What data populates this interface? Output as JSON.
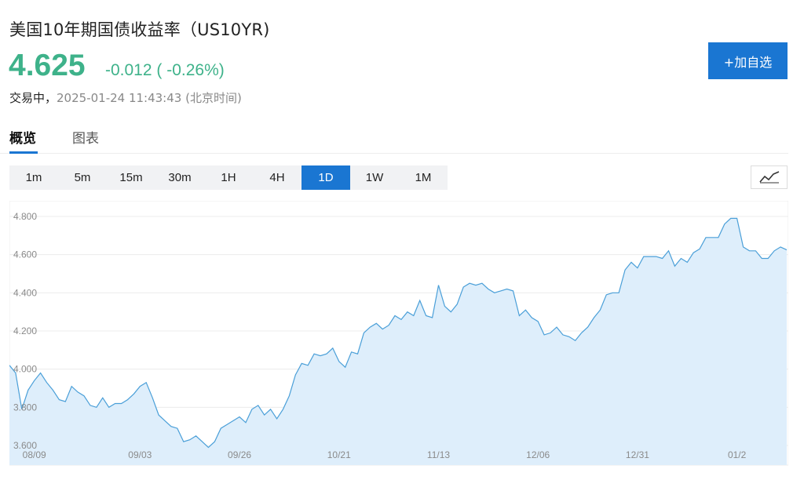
{
  "header": {
    "title": "美国10年期国债收益率（US10YR)",
    "price": "4.625",
    "change": "-0.012 ( -0.26%)",
    "status_label": "交易中，",
    "timestamp": "2025-01-24 11:43:43 (北京时间)",
    "add_button": "+加自选"
  },
  "tabs": [
    {
      "label": "概览",
      "active": true
    },
    {
      "label": "图表",
      "active": false
    }
  ],
  "periods": [
    "1m",
    "5m",
    "15m",
    "30m",
    "1H",
    "4H",
    "1D",
    "1W",
    "1M"
  ],
  "active_period": "1D",
  "icons": {
    "chart_type": "line-chart-icon"
  },
  "colors": {
    "up_green": "#3eb28a",
    "accent": "#1a76d2",
    "line": "#4a9fd8",
    "area": "#deeefb"
  },
  "chart_data": {
    "type": "area",
    "title": "",
    "xlabel": "",
    "ylabel": "",
    "ylim": [
      3.6,
      4.85
    ],
    "yticks": [
      "4.800",
      "4.600",
      "4.400",
      "4.200",
      "4.000",
      "3.800",
      "3.600"
    ],
    "ytick_values": [
      4.8,
      4.6,
      4.4,
      4.2,
      4.0,
      3.8,
      3.6
    ],
    "xticks": [
      "08/09",
      "09/03",
      "09/26",
      "10/21",
      "11/13",
      "12/06",
      "12/31",
      "01/2"
    ],
    "xtick_index": [
      4,
      21,
      37,
      53,
      69,
      85,
      101,
      117
    ],
    "grid": true,
    "series": [
      {
        "values": [
          4.02,
          3.98,
          3.79,
          3.89,
          3.94,
          3.98,
          3.93,
          3.89,
          3.84,
          3.83,
          3.91,
          3.88,
          3.86,
          3.81,
          3.8,
          3.85,
          3.8,
          3.82,
          3.82,
          3.84,
          3.87,
          3.91,
          3.93,
          3.85,
          3.76,
          3.73,
          3.7,
          3.69,
          3.62,
          3.63,
          3.65,
          3.62,
          3.59,
          3.62,
          3.69,
          3.71,
          3.73,
          3.75,
          3.72,
          3.79,
          3.81,
          3.76,
          3.79,
          3.74,
          3.79,
          3.86,
          3.97,
          4.03,
          4.02,
          4.08,
          4.07,
          4.08,
          4.11,
          4.04,
          4.01,
          4.09,
          4.08,
          4.19,
          4.22,
          4.24,
          4.21,
          4.23,
          4.28,
          4.26,
          4.3,
          4.28,
          4.36,
          4.28,
          4.27,
          4.44,
          4.33,
          4.3,
          4.34,
          4.43,
          4.45,
          4.44,
          4.45,
          4.42,
          4.4,
          4.41,
          4.42,
          4.41,
          4.28,
          4.31,
          4.27,
          4.25,
          4.18,
          4.19,
          4.22,
          4.18,
          4.17,
          4.15,
          4.19,
          4.22,
          4.27,
          4.31,
          4.39,
          4.4,
          4.4,
          4.52,
          4.56,
          4.53,
          4.59,
          4.59,
          4.59,
          4.58,
          4.62,
          4.54,
          4.58,
          4.56,
          4.61,
          4.63,
          4.69,
          4.69,
          4.69,
          4.76,
          4.79,
          4.79,
          4.64,
          4.62,
          4.62,
          4.58,
          4.58,
          4.62,
          4.64,
          4.625
        ]
      }
    ]
  }
}
